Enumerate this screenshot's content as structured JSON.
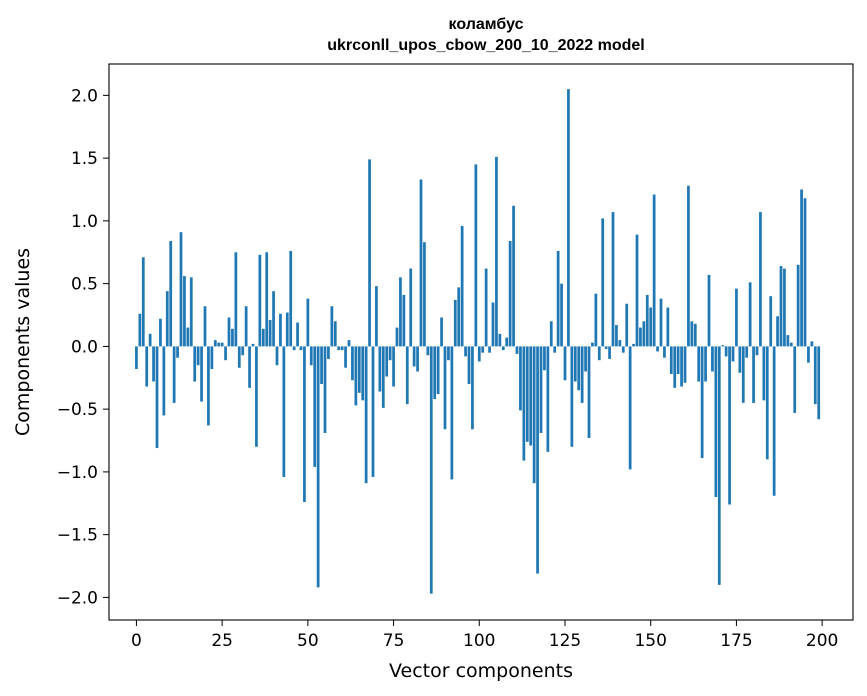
{
  "chart_data": {
    "type": "bar",
    "title": "коламбус",
    "subtitle": "ukrconll_upos_cbow_200_10_2022 model",
    "xlabel": "Vector components",
    "ylabel": "Components values",
    "xlim": [
      -8,
      209
    ],
    "ylim": [
      -2.18,
      2.25
    ],
    "xticks": [
      0,
      25,
      50,
      75,
      100,
      125,
      150,
      175,
      200
    ],
    "yticks": [
      -2.0,
      -1.5,
      -1.0,
      -0.5,
      0.0,
      0.5,
      1.0,
      1.5,
      2.0
    ],
    "ytick_labels": [
      "−2.0",
      "−1.5",
      "−1.0",
      "−0.5",
      "0.0",
      "0.5",
      "1.0",
      "1.5",
      "2.0"
    ],
    "bar_color": "#1f77b4",
    "grid": false,
    "legend": "none",
    "values": [
      -0.18,
      0.26,
      0.71,
      -0.32,
      0.1,
      -0.28,
      -0.81,
      0.22,
      -0.55,
      0.44,
      0.84,
      -0.45,
      -0.09,
      0.91,
      0.56,
      0.15,
      0.55,
      -0.28,
      -0.15,
      -0.44,
      0.32,
      -0.63,
      -0.18,
      0.05,
      0.03,
      0.03,
      -0.11,
      0.23,
      0.14,
      0.75,
      -0.17,
      -0.07,
      0.32,
      -0.33,
      0.02,
      -0.8,
      0.73,
      0.14,
      0.75,
      0.21,
      0.44,
      -0.15,
      0.26,
      -1.04,
      0.27,
      0.76,
      -0.03,
      0.19,
      -0.03,
      -1.24,
      0.38,
      -0.15,
      -0.96,
      -1.92,
      -0.3,
      -0.69,
      -0.1,
      0.32,
      0.2,
      -0.03,
      -0.03,
      -0.17,
      0.05,
      -0.27,
      -0.47,
      -0.37,
      -0.43,
      -1.09,
      1.49,
      -1.04,
      0.48,
      -0.36,
      -0.49,
      -0.24,
      -0.11,
      -0.32,
      0.15,
      0.55,
      0.41,
      -0.46,
      0.62,
      -0.16,
      -0.2,
      1.33,
      0.83,
      -0.07,
      -1.97,
      -0.42,
      -0.38,
      0.23,
      -0.66,
      -0.11,
      -1.06,
      0.37,
      0.47,
      0.96,
      -0.08,
      -0.3,
      -0.66,
      1.45,
      -0.12,
      -0.05,
      0.62,
      -0.05,
      0.35,
      1.51,
      0.1,
      -0.03,
      0.07,
      0.84,
      1.12,
      -0.06,
      -0.51,
      -0.91,
      -0.76,
      -0.79,
      -1.09,
      -1.81,
      -0.69,
      -0.19,
      -0.84,
      0.2,
      -0.05,
      0.76,
      0.5,
      -0.27,
      2.05,
      -0.8,
      -0.28,
      -0.35,
      -0.45,
      -0.2,
      -0.73,
      0.03,
      0.42,
      -0.11,
      1.02,
      -0.02,
      -0.1,
      1.07,
      0.17,
      0.05,
      -0.05,
      0.34,
      -0.98,
      0.02,
      0.89,
      0.15,
      0.2,
      0.41,
      0.31,
      1.21,
      -0.04,
      0.38,
      -0.09,
      0.31,
      -0.22,
      -0.33,
      -0.22,
      -0.32,
      -0.29,
      1.28,
      0.2,
      0.18,
      -0.28,
      -0.89,
      -0.28,
      0.57,
      -0.2,
      -1.2,
      -1.9,
      0.01,
      -0.08,
      -1.26,
      -0.12,
      0.46,
      -0.21,
      -0.45,
      -0.09,
      0.51,
      -0.45,
      -0.07,
      1.07,
      -0.43,
      -0.9,
      0.4,
      -1.19,
      0.24,
      0.64,
      0.62,
      0.09,
      0.03,
      -0.53,
      0.65,
      1.25,
      1.18,
      -0.13,
      0.04,
      -0.46,
      -0.58
    ]
  }
}
